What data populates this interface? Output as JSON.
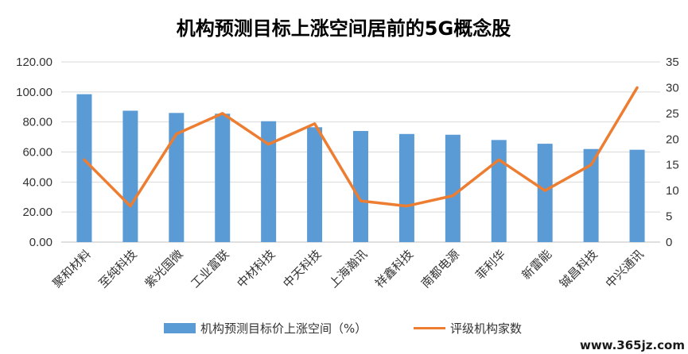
{
  "chart_data": {
    "type": "bar",
    "title": "机构预测目标上涨空间居前的5G概念股",
    "categories": [
      "聚和材料",
      "至纯科技",
      "紫光国微",
      "工业富联",
      "中材科技",
      "中天科技",
      "上海瀚讯",
      "祥鑫科技",
      "南都电源",
      "菲利华",
      "新雷能",
      "铖昌科技",
      "中兴通讯"
    ],
    "series": [
      {
        "name": "机构预测目标价上涨空间（%）",
        "type": "bar",
        "axis": "left",
        "color": "#5b9bd5",
        "values": [
          98.5,
          87.5,
          86.0,
          85.5,
          80.5,
          76.5,
          74.0,
          72.0,
          71.5,
          68.0,
          65.5,
          62.0,
          61.5
        ]
      },
      {
        "name": "评级机构家数",
        "type": "line",
        "axis": "right",
        "color": "#ed7d31",
        "values": [
          16,
          7,
          21,
          25,
          19,
          23,
          8,
          7,
          9,
          16,
          10,
          15,
          30
        ]
      }
    ],
    "y_left": {
      "min": 0,
      "max": 120,
      "step": 20,
      "tick_labels": [
        "0.00",
        "20.00",
        "40.00",
        "60.00",
        "80.00",
        "100.00",
        "120.00"
      ]
    },
    "y_right": {
      "min": 0,
      "max": 35,
      "step": 5,
      "tick_labels": [
        "0",
        "5",
        "10",
        "15",
        "20",
        "25",
        "30",
        "35"
      ]
    },
    "grid": true,
    "legend_position": "bottom"
  },
  "watermark": "www.365jz.com"
}
